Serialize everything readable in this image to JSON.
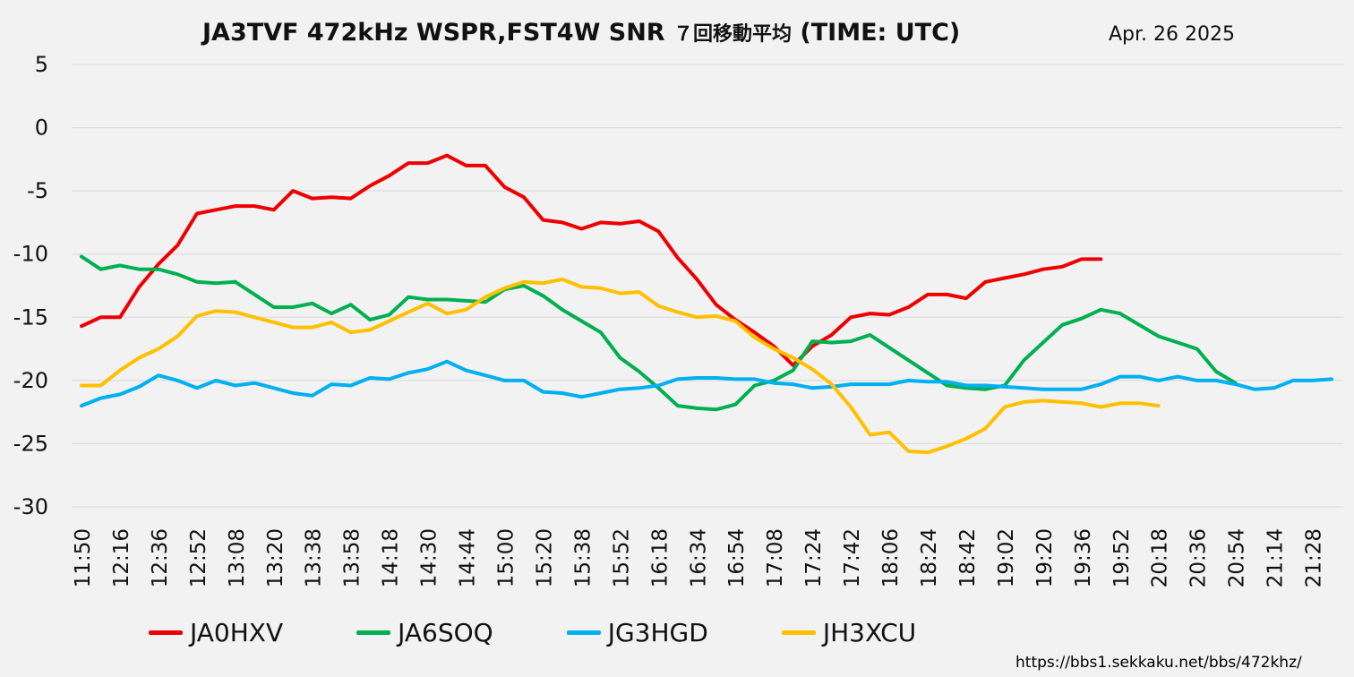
{
  "title": {
    "text_a": "JA3TVF 472kHz WSPR,FST4W SNR",
    "text_b": "７回移動平均",
    "text_c": "(TIME: UTC)"
  },
  "date": "Apr. 26 2025",
  "source_url": "https://bbs1.sekkaku.net/bbs/472khz/",
  "chart_data": {
    "type": "line",
    "title": "JA3TVF 472kHz WSPR,FST4W SNR ７回移動平均 (TIME: UTC)",
    "ylim": [
      -30,
      5
    ],
    "yticks": [
      5,
      0,
      -5,
      -10,
      -15,
      -20,
      -25,
      -30
    ],
    "grid": true,
    "legend_position": "bottom",
    "x_tick_labels": [
      "11:50",
      "12:16",
      "12:36",
      "12:52",
      "13:08",
      "13:20",
      "13:38",
      "13:58",
      "14:18",
      "14:30",
      "14:44",
      "15:00",
      "15:20",
      "15:38",
      "15:52",
      "16:18",
      "16:34",
      "16:54",
      "17:08",
      "17:24",
      "17:42",
      "18:06",
      "18:24",
      "18:42",
      "19:02",
      "19:20",
      "19:36",
      "19:52",
      "20:18",
      "20:36",
      "20:54",
      "21:14",
      "21:28"
    ],
    "series": [
      {
        "name": "JA0HXV",
        "color": "#ee0000",
        "values": [
          -15.7,
          -15.0,
          -15.0,
          -12.6,
          -10.8,
          -9.3,
          -6.8,
          -6.5,
          -6.2,
          -6.2,
          -6.5,
          -5.0,
          -5.6,
          -5.5,
          -5.6,
          -4.6,
          -3.8,
          -2.8,
          -2.8,
          -2.2,
          -3.0,
          -3.0,
          -4.7,
          -5.5,
          -7.3,
          -7.5,
          -8.0,
          -7.5,
          -7.6,
          -7.4,
          -8.2,
          -10.3,
          -12.0,
          -14.0,
          -15.2,
          -16.2,
          -17.3,
          -18.8,
          -17.3,
          -16.4,
          -15.0,
          -14.7,
          -14.8,
          -14.2,
          -13.2,
          -13.2,
          -13.5,
          -12.2,
          -11.9,
          -11.6,
          -11.2,
          -11.0,
          -10.4,
          -10.4
        ]
      },
      {
        "name": "JA6SOQ",
        "color": "#00b050",
        "values": [
          -10.2,
          -11.2,
          -10.9,
          -11.2,
          -11.2,
          -11.6,
          -12.2,
          -12.3,
          -12.2,
          -13.2,
          -14.2,
          -14.2,
          -13.9,
          -14.7,
          -14.0,
          -15.2,
          -14.8,
          -13.4,
          -13.6,
          -13.6,
          -13.7,
          -13.8,
          -12.8,
          -12.5,
          -13.3,
          -14.4,
          -15.3,
          -16.2,
          -18.2,
          -19.3,
          -20.6,
          -22.0,
          -22.2,
          -22.3,
          -21.9,
          -20.4,
          -20.0,
          -19.2,
          -16.9,
          -17.0,
          -16.9,
          -16.4,
          -17.4,
          -18.4,
          -19.4,
          -20.4,
          -20.6,
          -20.7,
          -20.4,
          -18.4,
          -17.0,
          -15.6,
          -15.1,
          -14.4,
          -14.7,
          -15.6,
          -16.5,
          -17.0,
          -17.5,
          -19.3,
          -20.2
        ]
      },
      {
        "name": "JG3HGD",
        "color": "#00b0f0",
        "values": [
          -22.0,
          -21.4,
          -21.1,
          -20.5,
          -19.6,
          -20.0,
          -20.6,
          -20.0,
          -20.4,
          -20.2,
          -20.6,
          -21.0,
          -21.2,
          -20.3,
          -20.4,
          -19.8,
          -19.9,
          -19.4,
          -19.1,
          -18.5,
          -19.2,
          -19.6,
          -20.0,
          -20.0,
          -20.9,
          -21.0,
          -21.3,
          -21.0,
          -20.7,
          -20.6,
          -20.4,
          -19.9,
          -19.8,
          -19.8,
          -19.9,
          -19.9,
          -20.2,
          -20.3,
          -20.6,
          -20.5,
          -20.3,
          -20.3,
          -20.3,
          -20.0,
          -20.1,
          -20.1,
          -20.4,
          -20.4,
          -20.5,
          -20.6,
          -20.7,
          -20.7,
          -20.7,
          -20.3,
          -19.7,
          -19.7,
          -20.0,
          -19.7,
          -20.0,
          -20.0,
          -20.3,
          -20.7,
          -20.6,
          -20.0,
          -20.0,
          -19.9
        ]
      },
      {
        "name": "JH3XCU",
        "color": "#ffc000",
        "values": [
          -20.4,
          -20.4,
          -19.2,
          -18.2,
          -17.5,
          -16.5,
          -14.9,
          -14.5,
          -14.6,
          -15.0,
          -15.4,
          -15.8,
          -15.8,
          -15.4,
          -16.2,
          -16.0,
          -15.3,
          -14.6,
          -13.9,
          -14.7,
          -14.4,
          -13.4,
          -12.7,
          -12.2,
          -12.3,
          -12.0,
          -12.6,
          -12.7,
          -13.1,
          -13.0,
          -14.1,
          -14.6,
          -15.0,
          -14.9,
          -15.3,
          -16.6,
          -17.5,
          -18.2,
          -19.1,
          -20.3,
          -22.1,
          -24.3,
          -24.1,
          -25.6,
          -25.7,
          -25.2,
          -24.6,
          -23.8,
          -22.1,
          -21.7,
          -21.6,
          -21.7,
          -21.8,
          -22.1,
          -21.8,
          -21.8,
          -22.0
        ]
      }
    ]
  }
}
